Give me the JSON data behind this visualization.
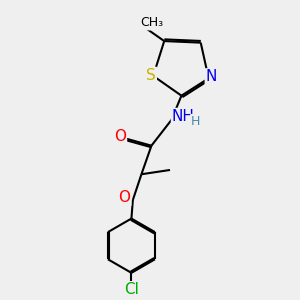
{
  "background_color": "#efefef",
  "atom_colors": {
    "S": "#c8b400",
    "N": "#0000ee",
    "O": "#ff0000",
    "Cl": "#00aa00",
    "C": "#000000",
    "H": "#4488aa"
  },
  "line_width": 1.5,
  "dbo": 0.06,
  "font_size": 10,
  "fig_size": [
    3.0,
    3.0
  ],
  "dpi": 100,
  "xlim": [
    0,
    10
  ],
  "ylim": [
    0,
    10
  ]
}
